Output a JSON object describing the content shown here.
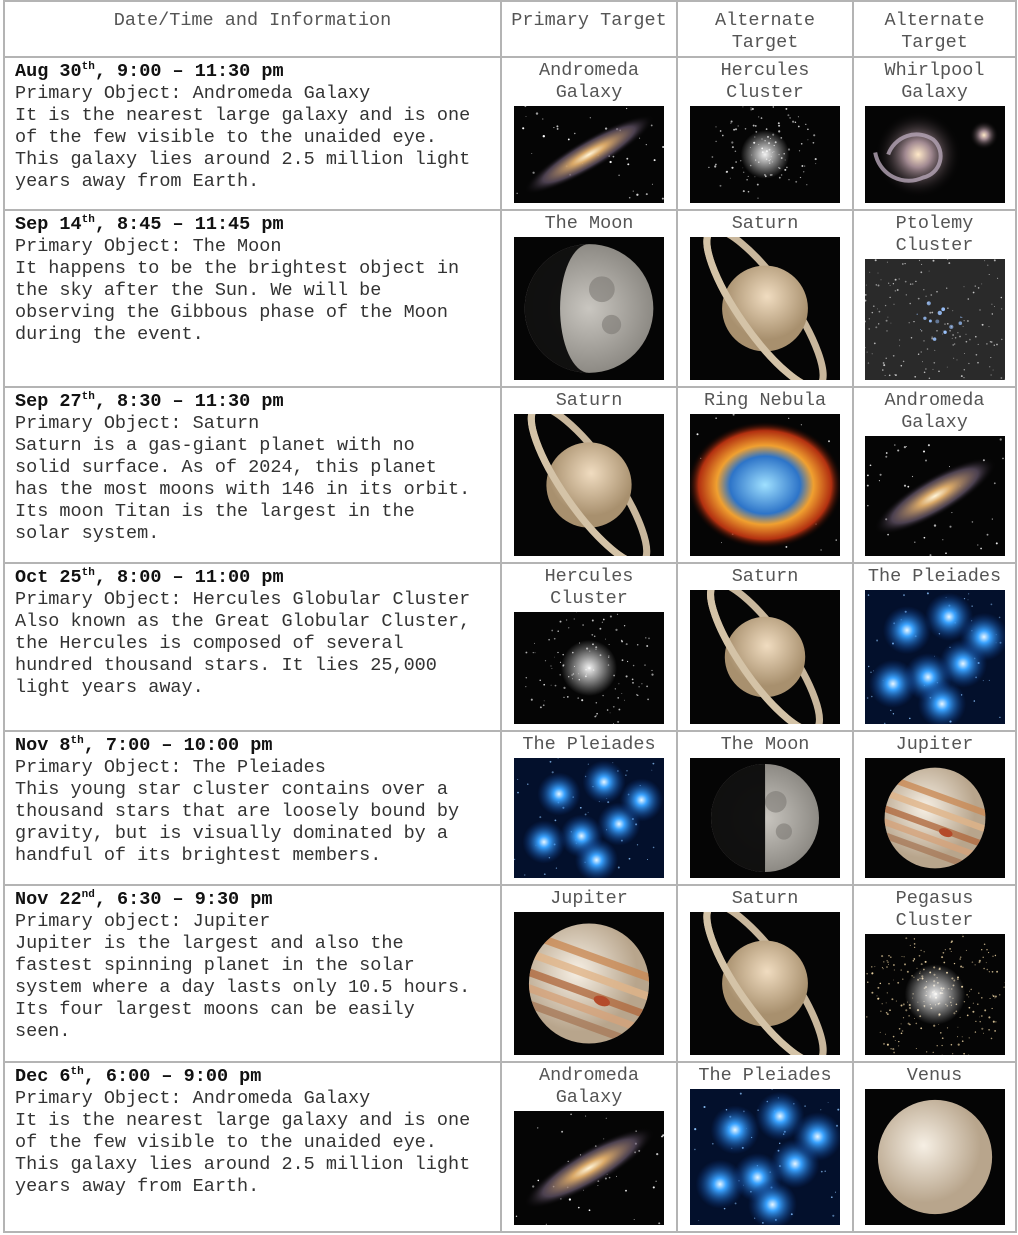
{
  "table": {
    "header": [
      "Date/Time and Information",
      "Primary Target",
      "Alternate Target",
      "Alternate Target"
    ],
    "rows": [
      {
        "date": "Aug 30",
        "ordinal": "th",
        "time": ", 9:00 – 11:30 pm",
        "object": "Primary Object: Andromeda Galaxy",
        "description": [
          "It is the nearest large galaxy and is one",
          "of the few visible to the unaided eye.",
          "This galaxy lies around 2.5 million light",
          "years away from Earth."
        ],
        "targets": [
          "Andromeda Galaxy",
          "Hercules Cluster",
          "Whirlpool Galaxy"
        ]
      },
      {
        "date": "Sep 14",
        "ordinal": "th",
        "time": ", 8:45 – 11:45 pm",
        "object": "Primary Object: The Moon",
        "description": [
          "It happens to be the brightest object in",
          "the sky after the Sun. We will be",
          "observing the Gibbous phase of the Moon",
          "during the event."
        ],
        "targets": [
          "The Moon",
          "Saturn",
          "Ptolemy Cluster"
        ]
      },
      {
        "date": "Sep 27",
        "ordinal": "th",
        "time": ", 8:30 – 11:30 pm",
        "object": "Primary Object: Saturn",
        "description": [
          "Saturn is a gas-giant planet with no",
          "solid surface. As of 2024, this planet",
          "has the most moons with 146 in its orbit.",
          "Its moon Titan is the largest in the",
          "solar system."
        ],
        "targets": [
          "Saturn",
          "Ring Nebula",
          "Andromeda Galaxy"
        ]
      },
      {
        "date": "Oct 25",
        "ordinal": "th",
        "time": ", 8:00 – 11:00 pm",
        "object": "Primary Object: Hercules Globular Cluster",
        "description": [
          "Also known as the Great Globular Cluster,",
          "the Hercules is composed of several",
          "hundred thousand stars. It lies 25,000",
          "light years away."
        ],
        "targets": [
          "Hercules Cluster",
          "Saturn",
          "The Pleiades"
        ]
      },
      {
        "date": "Nov 8",
        "ordinal": "th",
        "time": ", 7:00 – 10:00 pm",
        "object": "Primary Object: The Pleiades",
        "description": [
          "This young star cluster contains over a",
          "thousand stars that are loosely bound by",
          "gravity, but is visually dominated by a",
          "handful of its brightest members."
        ],
        "targets": [
          "The Pleiades",
          "The Moon",
          "Jupiter"
        ]
      },
      {
        "date": "Nov 22",
        "ordinal": "nd",
        "time": ", 6:30 – 9:30 pm",
        "object": "Primary object: Jupiter",
        "description": [
          "Jupiter is the largest and also the",
          "fastest spinning planet in the solar",
          "system where a day lasts only 10.5 hours.",
          "Its four largest moons can be easily",
          "seen."
        ],
        "targets": [
          "Jupiter",
          "Saturn",
          "Pegasus Cluster"
        ]
      },
      {
        "date": "Dec 6",
        "ordinal": "th",
        "time": ", 6:00 – 9:00 pm",
        "object": "Primary Object: Andromeda Galaxy",
        "description": [
          "It is the nearest large galaxy and is one",
          "of the few visible to the unaided eye.",
          "This galaxy lies around 2.5 million light",
          "years away from Earth."
        ],
        "targets": [
          "Andromeda Galaxy",
          "The Pleiades",
          "Venus"
        ]
      }
    ]
  }
}
